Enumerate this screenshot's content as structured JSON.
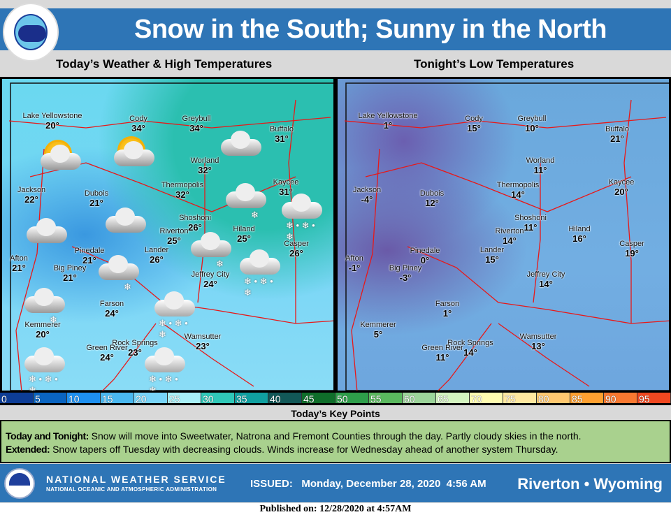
{
  "header": {
    "title": "Snow in the South; Sunny in the North",
    "logo_text": "NATIONAL WEATHER SERVICE"
  },
  "left_map": {
    "title": "Today’s Weather  & High Temperatures",
    "cities": [
      {
        "name": "Lake Yellowstone",
        "temp": "20°"
      },
      {
        "name": "Cody",
        "temp": "34°"
      },
      {
        "name": "Greybull",
        "temp": "34°"
      },
      {
        "name": "Buffalo",
        "temp": "31°"
      },
      {
        "name": "Worland",
        "temp": "32°"
      },
      {
        "name": "Thermopolis",
        "temp": "32°"
      },
      {
        "name": "Kaycee",
        "temp": "31°"
      },
      {
        "name": "Jackson",
        "temp": "22°"
      },
      {
        "name": "Dubois",
        "temp": "21°"
      },
      {
        "name": "Shoshoni",
        "temp": "26°"
      },
      {
        "name": "Riverton",
        "temp": "25°"
      },
      {
        "name": "Hiland",
        "temp": "25°"
      },
      {
        "name": "Casper",
        "temp": "26°"
      },
      {
        "name": "Lander",
        "temp": "26°"
      },
      {
        "name": "Pinedale",
        "temp": "21°"
      },
      {
        "name": "Afton",
        "temp": "21°"
      },
      {
        "name": "Big Piney",
        "temp": "21°"
      },
      {
        "name": "Jeffrey City",
        "temp": "24°"
      },
      {
        "name": "Farson",
        "temp": "24°"
      },
      {
        "name": "Kemmerer",
        "temp": "20°"
      },
      {
        "name": "Wamsutter",
        "temp": "23°"
      },
      {
        "name": "Rock Springs",
        "temp": "23°"
      },
      {
        "name": "Green River",
        "temp": "24°"
      }
    ],
    "weather_icons": [
      "partly-sunny",
      "partly-sunny",
      "cloudy",
      "cloudy",
      "cloudy",
      "light-snow",
      "light-snow",
      "light-snow",
      "light-snow",
      "snow",
      "snow",
      "snow",
      "snow",
      "snow"
    ]
  },
  "right_map": {
    "title": "Tonight’s Low Temperatures",
    "cities": [
      {
        "name": "Lake Yellowstone",
        "temp": "1°"
      },
      {
        "name": "Cody",
        "temp": "15°"
      },
      {
        "name": "Greybull",
        "temp": "10°"
      },
      {
        "name": "Buffalo",
        "temp": "21°"
      },
      {
        "name": "Worland",
        "temp": "11°"
      },
      {
        "name": "Thermopolis",
        "temp": "14°"
      },
      {
        "name": "Kaycee",
        "temp": "20°"
      },
      {
        "name": "Jackson",
        "temp": "-4°"
      },
      {
        "name": "Dubois",
        "temp": "12°"
      },
      {
        "name": "Shoshoni",
        "temp": "11°"
      },
      {
        "name": "Riverton",
        "temp": "14°"
      },
      {
        "name": "Hiland",
        "temp": "16°"
      },
      {
        "name": "Casper",
        "temp": "19°"
      },
      {
        "name": "Lander",
        "temp": "15°"
      },
      {
        "name": "Pinedale",
        "temp": "0°"
      },
      {
        "name": "Afton",
        "temp": "-1°"
      },
      {
        "name": "Big Piney",
        "temp": "-3°"
      },
      {
        "name": "Jeffrey City",
        "temp": "14°"
      },
      {
        "name": "Farson",
        "temp": "1°"
      },
      {
        "name": "Kemmerer",
        "temp": "5°"
      },
      {
        "name": "Wamsutter",
        "temp": "13°"
      },
      {
        "name": "Rock Springs",
        "temp": "14°"
      },
      {
        "name": "Green River",
        "temp": "11°"
      }
    ]
  },
  "legend": {
    "labels": [
      "0",
      "5",
      "10",
      "15",
      "20",
      "25",
      "30",
      "35",
      "40",
      "45",
      "50",
      "55",
      "60",
      "65",
      "70",
      "75",
      "80",
      "85",
      "90",
      "95"
    ],
    "colors": [
      "#0d3d96",
      "#0a64c0",
      "#1e90f0",
      "#4ab8f0",
      "#78d4f8",
      "#a8f0f8",
      "#30c8b8",
      "#10a0a0",
      "#125858",
      "#0f6e2a",
      "#2e9e4a",
      "#5ab85e",
      "#9cd49a",
      "#d4f4c0",
      "#fffcb0",
      "#ffe8a0",
      "#ffc870",
      "#ffa030",
      "#f87830",
      "#f04820"
    ]
  },
  "key_points": {
    "title": "Today’s Key Points",
    "items": [
      {
        "label": "Today and Tonight:",
        "text": " Snow will move into Sweetwater, Natrona and Fremont Counties through the day. Partly cloudy skies in the north."
      },
      {
        "label": "Extended:",
        "text": " Snow tapers off Tuesday with decreasing clouds. Winds increase for Wednesday ahead of another system Thursday."
      }
    ]
  },
  "footer": {
    "agency": "NATIONAL WEATHER SERVICE",
    "agency_sub": "NATIONAL OCEANIC AND ATMOSPHERIC ADMINISTRATION",
    "issued": "ISSUED:   Monday, December 28, 2020  4:56 AM",
    "office": "Riverton • Wyoming"
  },
  "published": "Published on: 12/28/2020 at 4:57AM"
}
